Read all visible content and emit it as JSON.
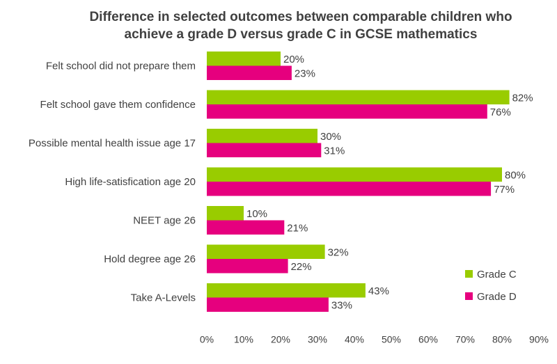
{
  "chart_data": {
    "type": "bar",
    "orientation": "horizontal",
    "title": "Difference in selected outcomes between comparable children who achieve a grade D versus grade C in GCSE mathematics",
    "title_lines": [
      "Difference in selected outcomes between comparable children who",
      "achieve a grade D versus grade C in GCSE mathematics"
    ],
    "categories": [
      "Felt school did not prepare them",
      "Felt school gave them confidence",
      "Possible mental health issue age 17",
      "High life-satisfication age 20",
      "NEET age 26",
      "Hold degree age 26",
      "Take A-Levels"
    ],
    "series": [
      {
        "name": "Grade C",
        "color": "#99cc00",
        "values": [
          20,
          82,
          30,
          80,
          10,
          32,
          43
        ],
        "labels": [
          "20%",
          "82%",
          "30%",
          "80%",
          "10%",
          "32%",
          "43%"
        ]
      },
      {
        "name": "Grade D",
        "color": "#e6007e",
        "values": [
          23,
          76,
          31,
          77,
          21,
          22,
          33
        ],
        "labels": [
          "23%",
          "76%",
          "31%",
          "77%",
          "21%",
          "22%",
          "33%"
        ]
      }
    ],
    "xlim": [
      0,
      90
    ],
    "xticks": [
      "0%",
      "10%",
      "20%",
      "30%",
      "40%",
      "50%",
      "60%",
      "70%",
      "80%",
      "90%"
    ],
    "xlabel": "",
    "ylabel": "",
    "grid": false,
    "legend_position": "bottom-right"
  }
}
